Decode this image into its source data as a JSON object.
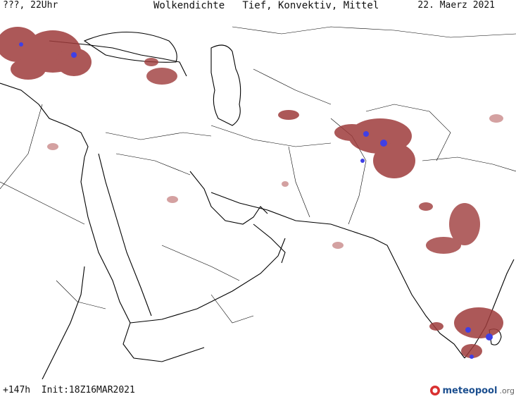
{
  "header": {
    "left": "???, 22Uhr",
    "title": "Wolkendichte   Tief, Konvektiv, Mittel",
    "date": "22. Maerz 2021"
  },
  "footer": {
    "forecast": "+147h  Init:18Z16MAR2021"
  },
  "logo": {
    "name": "meteopool",
    "tld": ".org"
  },
  "colors": {
    "cloud": "#9e3b3b",
    "cloud_light": "#c98a8a",
    "convective": "#3f3fe6",
    "border": "#000000"
  }
}
